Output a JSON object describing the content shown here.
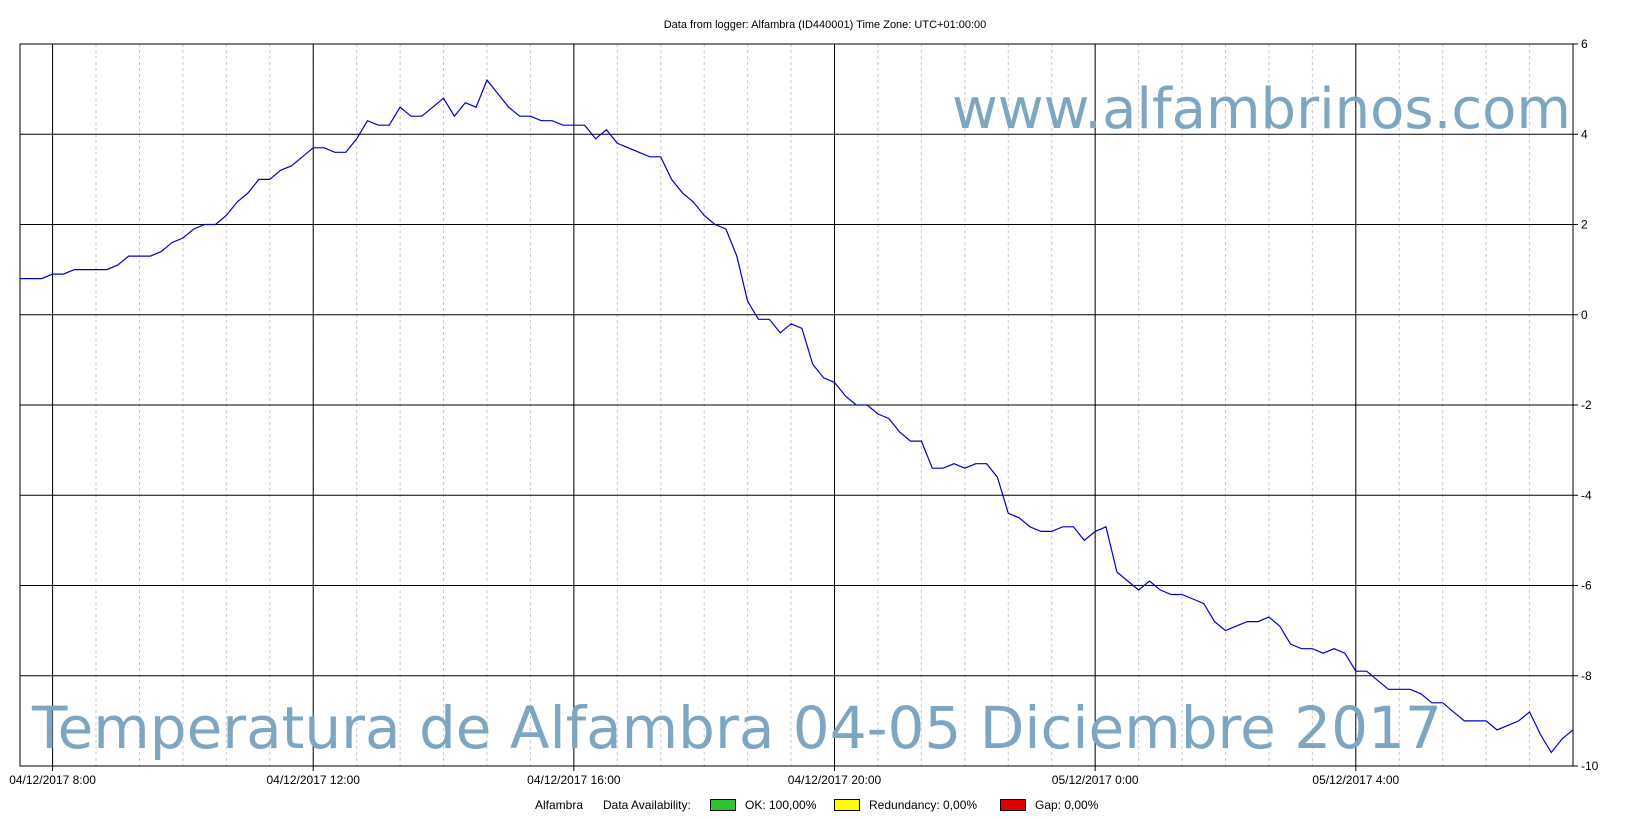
{
  "header": {
    "title": "Data from logger: Alfambra (ID440001) Time Zone: UTC+01:00:00"
  },
  "watermark": {
    "site": "www.alfambrinos.com",
    "caption": "Temperatura de Alfambra 04-05 Diciembre 2017",
    "color": "#7fa6c0"
  },
  "legend": {
    "station": "Alfambra",
    "availability_label": "Data Availability:",
    "ok": "OK: 100,00%",
    "ok_color": "#2fc32f",
    "redundancy": "Redundancy: 0,00%",
    "redundancy_color": "#ffff00",
    "gap": "Gap: 0,00%",
    "gap_color": "#e00000"
  },
  "chart_data": {
    "type": "line",
    "title": "Data from logger: Alfambra (ID440001) Time Zone: UTC+01:00:00",
    "xlabel": "",
    "ylabel": "",
    "x_ticks": [
      "04/12/2017 8:00",
      "04/12/2017 12:00",
      "04/12/2017 16:00",
      "04/12/2017 20:00",
      "05/12/2017 0:00",
      "05/12/2017 4:00"
    ],
    "x_range": [
      "04/12/2017 7:30",
      "05/12/2017 7:20"
    ],
    "y_ticks": [
      6,
      4,
      2,
      0,
      -2,
      -4,
      -6,
      -8,
      -10
    ],
    "y_axis_side": "right",
    "ylim": [
      -10,
      6
    ],
    "grid": true,
    "line_color": "#0000cc",
    "series": [
      {
        "name": "Alfambra",
        "points": [
          [
            "04/12/2017 07:30",
            0.8
          ],
          [
            "04/12/2017 07:40",
            0.8
          ],
          [
            "04/12/2017 07:50",
            0.8
          ],
          [
            "04/12/2017 08:00",
            0.9
          ],
          [
            "04/12/2017 08:10",
            0.9
          ],
          [
            "04/12/2017 08:20",
            1.0
          ],
          [
            "04/12/2017 08:30",
            1.0
          ],
          [
            "04/12/2017 08:40",
            1.0
          ],
          [
            "04/12/2017 08:50",
            1.0
          ],
          [
            "04/12/2017 09:00",
            1.1
          ],
          [
            "04/12/2017 09:10",
            1.3
          ],
          [
            "04/12/2017 09:20",
            1.3
          ],
          [
            "04/12/2017 09:30",
            1.3
          ],
          [
            "04/12/2017 09:40",
            1.4
          ],
          [
            "04/12/2017 09:50",
            1.6
          ],
          [
            "04/12/2017 10:00",
            1.7
          ],
          [
            "04/12/2017 10:10",
            1.9
          ],
          [
            "04/12/2017 10:20",
            2.0
          ],
          [
            "04/12/2017 10:30",
            2.0
          ],
          [
            "04/12/2017 10:40",
            2.2
          ],
          [
            "04/12/2017 10:50",
            2.5
          ],
          [
            "04/12/2017 11:00",
            2.7
          ],
          [
            "04/12/2017 11:10",
            3.0
          ],
          [
            "04/12/2017 11:20",
            3.0
          ],
          [
            "04/12/2017 11:30",
            3.2
          ],
          [
            "04/12/2017 11:40",
            3.3
          ],
          [
            "04/12/2017 11:50",
            3.5
          ],
          [
            "04/12/2017 12:00",
            3.7
          ],
          [
            "04/12/2017 12:10",
            3.7
          ],
          [
            "04/12/2017 12:20",
            3.6
          ],
          [
            "04/12/2017 12:30",
            3.6
          ],
          [
            "04/12/2017 12:40",
            3.9
          ],
          [
            "04/12/2017 12:50",
            4.3
          ],
          [
            "04/12/2017 13:00",
            4.2
          ],
          [
            "04/12/2017 13:10",
            4.2
          ],
          [
            "04/12/2017 13:20",
            4.6
          ],
          [
            "04/12/2017 13:30",
            4.4
          ],
          [
            "04/12/2017 13:40",
            4.4
          ],
          [
            "04/12/2017 13:50",
            4.6
          ],
          [
            "04/12/2017 14:00",
            4.8
          ],
          [
            "04/12/2017 14:10",
            4.4
          ],
          [
            "04/12/2017 14:20",
            4.7
          ],
          [
            "04/12/2017 14:30",
            4.6
          ],
          [
            "04/12/2017 14:40",
            5.2
          ],
          [
            "04/12/2017 14:50",
            4.9
          ],
          [
            "04/12/2017 15:00",
            4.6
          ],
          [
            "04/12/2017 15:10",
            4.4
          ],
          [
            "04/12/2017 15:20",
            4.4
          ],
          [
            "04/12/2017 15:30",
            4.3
          ],
          [
            "04/12/2017 15:40",
            4.3
          ],
          [
            "04/12/2017 15:50",
            4.2
          ],
          [
            "04/12/2017 16:00",
            4.2
          ],
          [
            "04/12/2017 16:10",
            4.2
          ],
          [
            "04/12/2017 16:20",
            3.9
          ],
          [
            "04/12/2017 16:30",
            4.1
          ],
          [
            "04/12/2017 16:40",
            3.8
          ],
          [
            "04/12/2017 16:50",
            3.7
          ],
          [
            "04/12/2017 17:00",
            3.6
          ],
          [
            "04/12/2017 17:10",
            3.5
          ],
          [
            "04/12/2017 17:20",
            3.5
          ],
          [
            "04/12/2017 17:30",
            3.0
          ],
          [
            "04/12/2017 17:40",
            2.7
          ],
          [
            "04/12/2017 17:50",
            2.5
          ],
          [
            "04/12/2017 18:00",
            2.2
          ],
          [
            "04/12/2017 18:10",
            2.0
          ],
          [
            "04/12/2017 18:20",
            1.9
          ],
          [
            "04/12/2017 18:30",
            1.3
          ],
          [
            "04/12/2017 18:40",
            0.3
          ],
          [
            "04/12/2017 18:50",
            -0.1
          ],
          [
            "04/12/2017 19:00",
            -0.1
          ],
          [
            "04/12/2017 19:10",
            -0.4
          ],
          [
            "04/12/2017 19:20",
            -0.2
          ],
          [
            "04/12/2017 19:30",
            -0.3
          ],
          [
            "04/12/2017 19:40",
            -1.1
          ],
          [
            "04/12/2017 19:50",
            -1.4
          ],
          [
            "04/12/2017 20:00",
            -1.5
          ],
          [
            "04/12/2017 20:10",
            -1.8
          ],
          [
            "04/12/2017 20:20",
            -2.0
          ],
          [
            "04/12/2017 20:30",
            -2.0
          ],
          [
            "04/12/2017 20:40",
            -2.2
          ],
          [
            "04/12/2017 20:50",
            -2.3
          ],
          [
            "04/12/2017 21:00",
            -2.6
          ],
          [
            "04/12/2017 21:10",
            -2.8
          ],
          [
            "04/12/2017 21:20",
            -2.8
          ],
          [
            "04/12/2017 21:30",
            -3.4
          ],
          [
            "04/12/2017 21:40",
            -3.4
          ],
          [
            "04/12/2017 21:50",
            -3.3
          ],
          [
            "04/12/2017 22:00",
            -3.4
          ],
          [
            "04/12/2017 22:10",
            -3.3
          ],
          [
            "04/12/2017 22:20",
            -3.3
          ],
          [
            "04/12/2017 22:30",
            -3.6
          ],
          [
            "04/12/2017 22:40",
            -4.4
          ],
          [
            "04/12/2017 22:50",
            -4.5
          ],
          [
            "04/12/2017 23:00",
            -4.7
          ],
          [
            "04/12/2017 23:10",
            -4.8
          ],
          [
            "04/12/2017 23:20",
            -4.8
          ],
          [
            "04/12/2017 23:30",
            -4.7
          ],
          [
            "04/12/2017 23:40",
            -4.7
          ],
          [
            "04/12/2017 23:50",
            -5.0
          ],
          [
            "05/12/2017 00:00",
            -4.8
          ],
          [
            "05/12/2017 00:10",
            -4.7
          ],
          [
            "05/12/2017 00:20",
            -5.7
          ],
          [
            "05/12/2017 00:30",
            -5.9
          ],
          [
            "05/12/2017 00:40",
            -6.1
          ],
          [
            "05/12/2017 00:50",
            -5.9
          ],
          [
            "05/12/2017 01:00",
            -6.1
          ],
          [
            "05/12/2017 01:10",
            -6.2
          ],
          [
            "05/12/2017 01:20",
            -6.2
          ],
          [
            "05/12/2017 01:30",
            -6.3
          ],
          [
            "05/12/2017 01:40",
            -6.4
          ],
          [
            "05/12/2017 01:50",
            -6.8
          ],
          [
            "05/12/2017 02:00",
            -7.0
          ],
          [
            "05/12/2017 02:10",
            -6.9
          ],
          [
            "05/12/2017 02:20",
            -6.8
          ],
          [
            "05/12/2017 02:30",
            -6.8
          ],
          [
            "05/12/2017 02:40",
            -6.7
          ],
          [
            "05/12/2017 02:50",
            -6.9
          ],
          [
            "05/12/2017 03:00",
            -7.3
          ],
          [
            "05/12/2017 03:10",
            -7.4
          ],
          [
            "05/12/2017 03:20",
            -7.4
          ],
          [
            "05/12/2017 03:30",
            -7.5
          ],
          [
            "05/12/2017 03:40",
            -7.4
          ],
          [
            "05/12/2017 03:50",
            -7.5
          ],
          [
            "05/12/2017 04:00",
            -7.9
          ],
          [
            "05/12/2017 04:10",
            -7.9
          ],
          [
            "05/12/2017 04:20",
            -8.1
          ],
          [
            "05/12/2017 04:30",
            -8.3
          ],
          [
            "05/12/2017 04:40",
            -8.3
          ],
          [
            "05/12/2017 04:50",
            -8.3
          ],
          [
            "05/12/2017 05:00",
            -8.4
          ],
          [
            "05/12/2017 05:10",
            -8.6
          ],
          [
            "05/12/2017 05:20",
            -8.6
          ],
          [
            "05/12/2017 05:30",
            -8.8
          ],
          [
            "05/12/2017 05:40",
            -9.0
          ],
          [
            "05/12/2017 05:50",
            -9.0
          ],
          [
            "05/12/2017 06:00",
            -9.0
          ],
          [
            "05/12/2017 06:10",
            -9.2
          ],
          [
            "05/12/2017 06:20",
            -9.1
          ],
          [
            "05/12/2017 06:30",
            -9.0
          ],
          [
            "05/12/2017 06:40",
            -8.8
          ],
          [
            "05/12/2017 06:50",
            -9.3
          ],
          [
            "05/12/2017 07:00",
            -9.7
          ],
          [
            "05/12/2017 07:10",
            -9.4
          ],
          [
            "05/12/2017 07:20",
            -9.2
          ]
        ]
      }
    ]
  }
}
